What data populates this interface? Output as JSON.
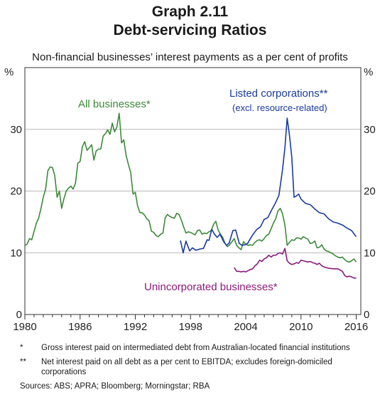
{
  "header": {
    "graph_label": "Graph 2.11",
    "title": "Debt-servicing Ratios",
    "subtitle": "Non-financial businesses’ interest payments as a per cent of profits"
  },
  "footnotes": [
    {
      "marker": "*",
      "text": "Gross interest paid on intermediated debt from Australian-located financial institutions"
    },
    {
      "marker": "**",
      "text": "Net interest paid on all debt as a per cent to EBITDA; excludes foreign-domiciled corporations"
    }
  ],
  "sources": "Sources:   ABS; APRA; Bloomberg; Morningstar; RBA",
  "chart_data": {
    "type": "line",
    "title": "Debt-servicing Ratios",
    "unit_left": "%",
    "unit_right": "%",
    "xlim": [
      1980,
      2016.5
    ],
    "ylim": [
      0,
      40
    ],
    "y_ticks": [
      0,
      10,
      20,
      30
    ],
    "x_tick_labels": [
      "1980",
      "1986",
      "1992",
      "1998",
      "2004",
      "2010",
      "2016"
    ],
    "x_tick_values": [
      1980,
      1986,
      1992,
      1998,
      2004,
      2010,
      2016
    ],
    "grid": true,
    "annotations": [
      {
        "text": "All businesses*",
        "color": "#3d8a3a"
      },
      {
        "text": "Listed corporations**",
        "color": "#1a3aa0"
      },
      {
        "text": "(excl. resource-related)",
        "color": "#1a3aa0"
      },
      {
        "text": "Unincorporated businesses*",
        "color": "#8a1a7a"
      }
    ],
    "series": [
      {
        "name": "All businesses*",
        "color": "#3d8a3a",
        "points": [
          [
            1980.0,
            11.2
          ],
          [
            1980.25,
            11.4
          ],
          [
            1980.5,
            12.3
          ],
          [
            1980.75,
            12.1
          ],
          [
            1981.0,
            13.5
          ],
          [
            1981.25,
            14.8
          ],
          [
            1981.5,
            15.6
          ],
          [
            1981.75,
            17.2
          ],
          [
            1982.0,
            19.0
          ],
          [
            1982.25,
            20.3
          ],
          [
            1982.5,
            23.3
          ],
          [
            1982.75,
            23.9
          ],
          [
            1983.0,
            23.8
          ],
          [
            1983.25,
            22.5
          ],
          [
            1983.5,
            19.0
          ],
          [
            1983.75,
            20.0
          ],
          [
            1984.0,
            17.2
          ],
          [
            1984.25,
            18.8
          ],
          [
            1984.5,
            20.0
          ],
          [
            1984.75,
            20.5
          ],
          [
            1985.0,
            20.8
          ],
          [
            1985.25,
            20.3
          ],
          [
            1985.5,
            21.3
          ],
          [
            1985.75,
            24.5
          ],
          [
            1986.0,
            24.8
          ],
          [
            1986.25,
            27.2
          ],
          [
            1986.5,
            28.0
          ],
          [
            1986.75,
            26.6
          ],
          [
            1987.0,
            27.0
          ],
          [
            1987.25,
            27.5
          ],
          [
            1987.5,
            25.0
          ],
          [
            1987.75,
            26.5
          ],
          [
            1988.0,
            26.8
          ],
          [
            1988.25,
            26.8
          ],
          [
            1988.5,
            28.9
          ],
          [
            1988.75,
            29.3
          ],
          [
            1989.0,
            29.9
          ],
          [
            1989.25,
            29.2
          ],
          [
            1989.5,
            31.0
          ],
          [
            1989.75,
            29.6
          ],
          [
            1990.0,
            30.4
          ],
          [
            1990.25,
            32.6
          ],
          [
            1990.5,
            27.8
          ],
          [
            1990.75,
            28.3
          ],
          [
            1991.0,
            25.8
          ],
          [
            1991.25,
            24.3
          ],
          [
            1991.5,
            23.0
          ],
          [
            1991.75,
            19.5
          ],
          [
            1992.0,
            19.8
          ],
          [
            1992.25,
            17.6
          ],
          [
            1992.5,
            16.5
          ],
          [
            1992.75,
            16.5
          ],
          [
            1993.0,
            16.1
          ],
          [
            1993.25,
            15.5
          ],
          [
            1993.5,
            15.2
          ],
          [
            1993.75,
            13.5
          ],
          [
            1994.0,
            13.3
          ],
          [
            1994.25,
            12.8
          ],
          [
            1994.5,
            12.6
          ],
          [
            1994.75,
            13.0
          ],
          [
            1995.0,
            13.2
          ],
          [
            1995.25,
            15.7
          ],
          [
            1995.5,
            16.2
          ],
          [
            1995.75,
            15.9
          ],
          [
            1996.0,
            15.7
          ],
          [
            1996.25,
            15.6
          ],
          [
            1996.5,
            16.4
          ],
          [
            1996.75,
            16.2
          ],
          [
            1997.0,
            15.3
          ],
          [
            1997.25,
            14.2
          ],
          [
            1997.5,
            13.2
          ],
          [
            1997.75,
            13.4
          ],
          [
            1998.0,
            13.3
          ],
          [
            1998.25,
            13.1
          ],
          [
            1998.5,
            12.9
          ],
          [
            1998.75,
            13.6
          ],
          [
            1999.0,
            13.7
          ],
          [
            1999.25,
            13.0
          ],
          [
            1999.5,
            13.2
          ],
          [
            1999.75,
            13.1
          ],
          [
            2000.0,
            13.4
          ],
          [
            2000.25,
            13.6
          ],
          [
            2000.5,
            14.6
          ],
          [
            2000.75,
            15.1
          ],
          [
            2001.0,
            13.7
          ],
          [
            2001.25,
            13.0
          ],
          [
            2001.5,
            12.5
          ],
          [
            2001.75,
            11.5
          ],
          [
            2002.0,
            11.0
          ],
          [
            2002.25,
            11.3
          ],
          [
            2002.5,
            11.8
          ],
          [
            2002.75,
            12.3
          ],
          [
            2003.0,
            11.2
          ],
          [
            2003.25,
            10.8
          ],
          [
            2003.5,
            10.5
          ],
          [
            2003.75,
            11.8
          ],
          [
            2004.0,
            11.4
          ],
          [
            2004.25,
            11.2
          ],
          [
            2004.5,
            11.3
          ],
          [
            2004.75,
            11.2
          ],
          [
            2005.0,
            11.7
          ],
          [
            2005.25,
            12.0
          ],
          [
            2005.5,
            12.1
          ],
          [
            2005.75,
            11.9
          ],
          [
            2006.0,
            12.3
          ],
          [
            2006.25,
            12.8
          ],
          [
            2006.5,
            13.0
          ],
          [
            2006.75,
            13.9
          ],
          [
            2007.0,
            14.8
          ],
          [
            2007.25,
            15.5
          ],
          [
            2007.5,
            16.8
          ],
          [
            2007.75,
            17.2
          ],
          [
            2008.0,
            16.3
          ],
          [
            2008.25,
            14.5
          ],
          [
            2008.5,
            11.2
          ],
          [
            2008.75,
            11.7
          ],
          [
            2009.0,
            12.1
          ],
          [
            2009.25,
            12.0
          ],
          [
            2009.5,
            12.4
          ],
          [
            2009.75,
            12.4
          ],
          [
            2010.0,
            12.2
          ],
          [
            2010.25,
            12.6
          ],
          [
            2010.5,
            12.4
          ],
          [
            2010.75,
            12.2
          ],
          [
            2011.0,
            11.5
          ],
          [
            2011.25,
            11.6
          ],
          [
            2011.5,
            11.9
          ],
          [
            2011.75,
            10.8
          ],
          [
            2012.0,
            10.9
          ],
          [
            2012.25,
            11.3
          ],
          [
            2012.5,
            10.6
          ],
          [
            2012.75,
            10.3
          ],
          [
            2013.0,
            10.2
          ],
          [
            2013.25,
            10.0
          ],
          [
            2013.5,
            9.8
          ],
          [
            2013.75,
            9.5
          ],
          [
            2014.0,
            9.3
          ],
          [
            2014.25,
            9.2
          ],
          [
            2014.5,
            9.3
          ],
          [
            2014.75,
            8.9
          ],
          [
            2015.0,
            8.6
          ],
          [
            2015.25,
            8.5
          ],
          [
            2015.5,
            8.7
          ],
          [
            2015.75,
            9.0
          ],
          [
            2016.0,
            8.5
          ]
        ]
      },
      {
        "name": "Listed corporations**",
        "color": "#1a3aa0",
        "points": [
          [
            1996.9,
            12.0
          ],
          [
            1997.2,
            10.0
          ],
          [
            1997.5,
            11.9
          ],
          [
            1997.9,
            10.3
          ],
          [
            1998.2,
            10.8
          ],
          [
            1998.6,
            10.4
          ],
          [
            1999.0,
            10.6
          ],
          [
            1999.4,
            10.7
          ],
          [
            1999.8,
            12.1
          ],
          [
            2000.0,
            12.0
          ],
          [
            2000.3,
            13.8
          ],
          [
            2000.6,
            13.0
          ],
          [
            2000.9,
            12.5
          ],
          [
            2001.2,
            13.0
          ],
          [
            2001.6,
            11.8
          ],
          [
            2001.9,
            11.2
          ],
          [
            2002.2,
            11.6
          ],
          [
            2002.6,
            13.6
          ],
          [
            2002.9,
            13.7
          ],
          [
            2003.3,
            11.5
          ],
          [
            2003.6,
            11.2
          ],
          [
            2003.9,
            11.3
          ],
          [
            2004.2,
            11.5
          ],
          [
            2004.5,
            12.3
          ],
          [
            2004.8,
            13.0
          ],
          [
            2005.2,
            13.8
          ],
          [
            2005.6,
            14.2
          ],
          [
            2006.0,
            15.4
          ],
          [
            2006.4,
            15.7
          ],
          [
            2006.8,
            16.9
          ],
          [
            2007.2,
            18.0
          ],
          [
            2007.6,
            19.3
          ],
          [
            2008.0,
            23.5
          ],
          [
            2008.25,
            27.0
          ],
          [
            2008.5,
            31.8
          ],
          [
            2008.75,
            29.0
          ],
          [
            2009.0,
            25.5
          ],
          [
            2009.25,
            19.0
          ],
          [
            2009.5,
            19.2
          ],
          [
            2009.75,
            19.5
          ],
          [
            2010.0,
            18.7
          ],
          [
            2010.5,
            18.0
          ],
          [
            2011.0,
            17.8
          ],
          [
            2011.5,
            17.1
          ],
          [
            2012.0,
            16.5
          ],
          [
            2012.5,
            16.3
          ],
          [
            2013.0,
            15.5
          ],
          [
            2013.5,
            15.0
          ],
          [
            2014.0,
            14.8
          ],
          [
            2014.5,
            14.5
          ],
          [
            2015.0,
            14.0
          ],
          [
            2015.5,
            13.6
          ],
          [
            2016.0,
            12.6
          ]
        ]
      },
      {
        "name": "Unincorporated businesses*",
        "color": "#8a1a7a",
        "points": [
          [
            2002.75,
            7.6
          ],
          [
            2003.0,
            7.0
          ],
          [
            2003.25,
            7.0
          ],
          [
            2003.5,
            6.9
          ],
          [
            2003.75,
            7.0
          ],
          [
            2004.0,
            6.9
          ],
          [
            2004.25,
            7.1
          ],
          [
            2004.5,
            7.3
          ],
          [
            2004.75,
            7.4
          ],
          [
            2005.0,
            7.9
          ],
          [
            2005.25,
            8.2
          ],
          [
            2005.5,
            8.8
          ],
          [
            2005.75,
            8.6
          ],
          [
            2006.0,
            9.0
          ],
          [
            2006.25,
            9.2
          ],
          [
            2006.5,
            9.6
          ],
          [
            2006.75,
            9.3
          ],
          [
            2007.0,
            9.6
          ],
          [
            2007.25,
            9.6
          ],
          [
            2007.5,
            9.9
          ],
          [
            2007.75,
            10.0
          ],
          [
            2008.0,
            9.8
          ],
          [
            2008.25,
            10.7
          ],
          [
            2008.5,
            8.7
          ],
          [
            2008.75,
            8.3
          ],
          [
            2009.0,
            8.1
          ],
          [
            2009.25,
            8.2
          ],
          [
            2009.5,
            8.4
          ],
          [
            2009.75,
            8.3
          ],
          [
            2010.0,
            8.8
          ],
          [
            2010.25,
            8.7
          ],
          [
            2010.5,
            8.6
          ],
          [
            2010.75,
            8.5
          ],
          [
            2011.0,
            8.6
          ],
          [
            2011.25,
            8.4
          ],
          [
            2011.5,
            8.3
          ],
          [
            2011.75,
            8.1
          ],
          [
            2012.0,
            8.3
          ],
          [
            2012.25,
            7.9
          ],
          [
            2012.5,
            7.7
          ],
          [
            2012.75,
            7.6
          ],
          [
            2013.0,
            7.5
          ],
          [
            2013.5,
            7.4
          ],
          [
            2014.0,
            7.4
          ],
          [
            2014.25,
            7.2
          ],
          [
            2014.5,
            7.0
          ],
          [
            2014.75,
            6.3
          ],
          [
            2015.0,
            6.1
          ],
          [
            2015.25,
            6.2
          ],
          [
            2015.5,
            6.1
          ],
          [
            2015.75,
            5.9
          ],
          [
            2016.0,
            5.9
          ]
        ]
      }
    ]
  }
}
